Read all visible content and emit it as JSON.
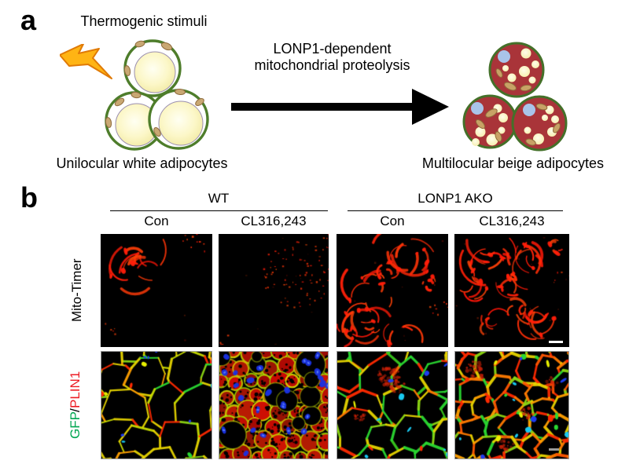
{
  "panel_a": {
    "label": "a",
    "stimuli_label": "Thermogenic stimuli",
    "arrow_label_line1": "LONP1-dependent",
    "arrow_label_line2": "mitochondrial proteolysis",
    "left_caption": "Unilocular white adipocytes",
    "right_caption": "Multilocular beige adipocytes"
  },
  "panel_b": {
    "label": "b",
    "groups": [
      {
        "label": "WT"
      },
      {
        "label": "LONP1 AKO"
      }
    ],
    "conditions": [
      "Con",
      "CL316,243",
      "Con",
      "CL316,243"
    ],
    "row1_label": "Mito-Timer",
    "row2_parts": [
      {
        "text": "GFP",
        "color": "#00a651"
      },
      {
        "text": "/",
        "color": "#000000"
      },
      {
        "text": "PLIN1",
        "color": "#ec1c24"
      }
    ]
  },
  "icons": {
    "lightning": "lightning-bolt-icon",
    "arrow": "right-arrow-icon",
    "scale_bars": "scale-bar"
  },
  "colors": {
    "white_cell_outline": "#4e7d2b",
    "beige_cell_fill": "#a93439",
    "beige_cell_outline": "#447029",
    "lipid_yellow": "#f6efa8",
    "nucleus_lightblue": "#a9c4e9",
    "mitochondria_tan": "#c9a873",
    "lightning_orange": "#ffb414",
    "mito_timer_red": "#ff1e0a",
    "gfp_green": "#2ad832",
    "plin1_red": "#ff2a00",
    "membrane_yellow": "#e6d400",
    "nucleus_blue": "#1e3cf0",
    "cyan": "#19c8f0",
    "scalebar_white": "#ffffff",
    "scalebar_gray": "#9a9a9a"
  }
}
